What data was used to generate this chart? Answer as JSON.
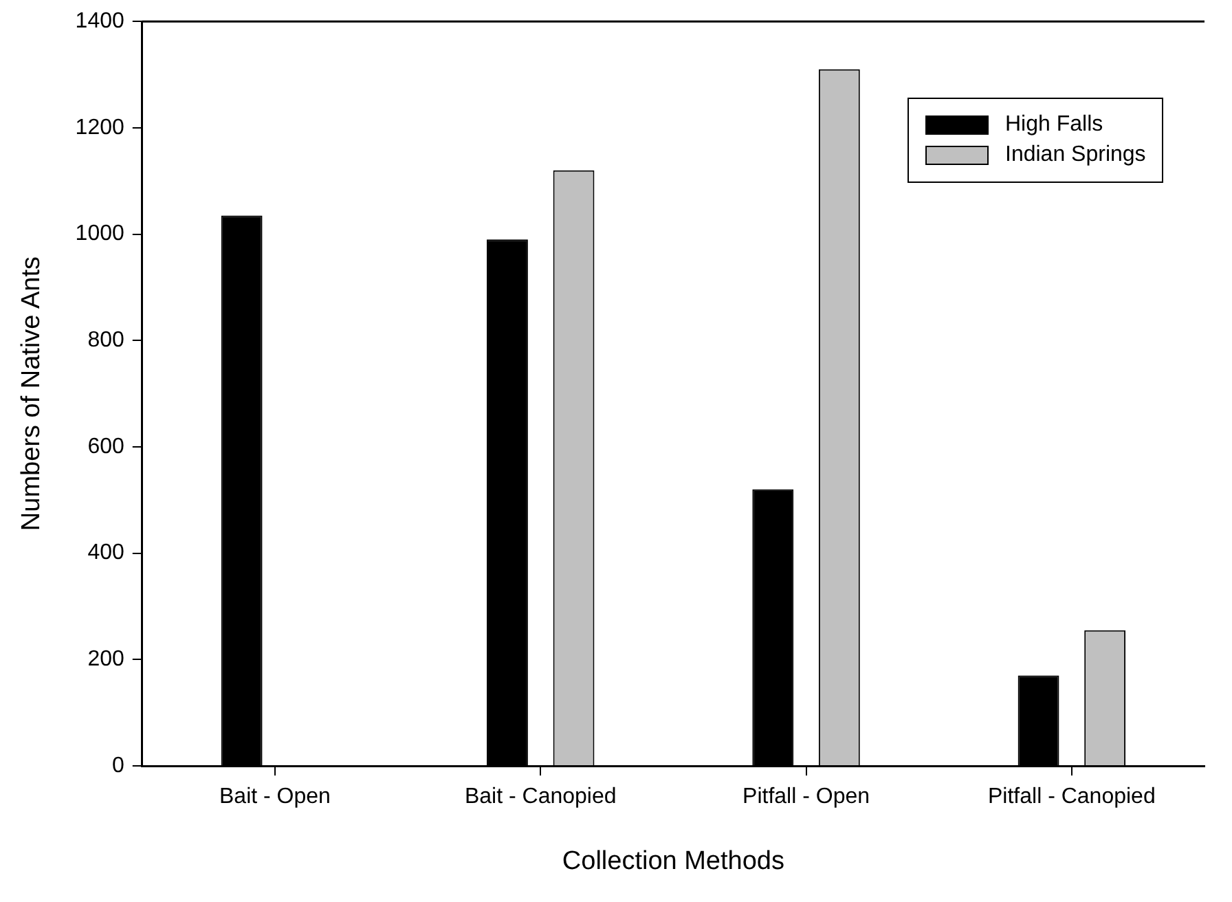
{
  "chart_data": {
    "type": "bar",
    "xlabel": "Collection Methods",
    "ylabel": "Numbers of Native Ants",
    "categories": [
      "Bait - Open",
      "Bait - Canopied",
      "Pitfall - Open",
      "Pitfall - Canopied"
    ],
    "series": [
      {
        "name": "High Falls",
        "color": "#000000",
        "values": [
          1035,
          990,
          520,
          170
        ]
      },
      {
        "name": "Indian Springs",
        "color": "#c0c0c0",
        "values": [
          null,
          1120,
          1310,
          255
        ]
      }
    ],
    "ylim": [
      0,
      1400
    ],
    "yticks": [
      0,
      200,
      400,
      600,
      800,
      1000,
      1200,
      1400
    ],
    "grid": false,
    "legend": "top right"
  }
}
